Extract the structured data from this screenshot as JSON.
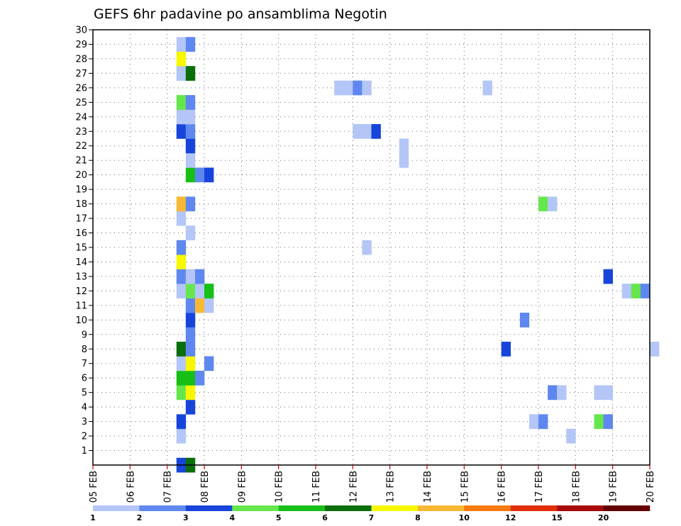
{
  "chart_data": {
    "type": "heatmap",
    "title": "GEFS 6hr padavine po ansamblima Negotin",
    "xlabel": "",
    "ylabel": "",
    "x_tick_labels": [
      "05 FEB",
      "06 FEB",
      "07 FEB",
      "08 FEB",
      "09 FEB",
      "10 FEB",
      "11 FEB",
      "12 FEB",
      "13 FEB",
      "14 FEB",
      "15 FEB",
      "16 FEB",
      "17 FEB",
      "18 FEB",
      "19 FEB",
      "20 FEB"
    ],
    "x_range_days": [
      0,
      15
    ],
    "y_tick_labels": [
      "1",
      "2",
      "3",
      "4",
      "5",
      "6",
      "7",
      "8",
      "9",
      "10",
      "11",
      "12",
      "13",
      "14",
      "15",
      "16",
      "17",
      "18",
      "19",
      "20",
      "21",
      "22",
      "23",
      "24",
      "25",
      "26",
      "27",
      "28",
      "29",
      "30"
    ],
    "y_range": [
      0,
      30
    ],
    "grid": true,
    "step_hours": 6,
    "colorbar": {
      "labels": [
        "1",
        "2",
        "3",
        "4",
        "5",
        "6",
        "7",
        "8",
        "10",
        "12",
        "15",
        "20"
      ],
      "colors": [
        "#b3c6f7",
        "#5f87f0",
        "#1745db",
        "#66e64d",
        "#16bf16",
        "#0a6e0a",
        "#f7f700",
        "#f7b933",
        "#f77a0a",
        "#e02e0a",
        "#a70b0b",
        "#640000"
      ],
      "placement": "bottom"
    },
    "cells": [
      {
        "m": 0,
        "s": 9,
        "c": 2
      },
      {
        "m": 0,
        "s": 10,
        "c": 5
      },
      {
        "m": 2,
        "s": 9,
        "c": 0
      },
      {
        "m": 3,
        "s": 9,
        "c": 2
      },
      {
        "m": 4,
        "s": 10,
        "c": 2
      },
      {
        "m": 5,
        "s": 9,
        "c": 3
      },
      {
        "m": 5,
        "s": 10,
        "c": 6
      },
      {
        "m": 6,
        "s": 9,
        "c": 4
      },
      {
        "m": 6,
        "s": 10,
        "c": 4
      },
      {
        "m": 6,
        "s": 11,
        "c": 1
      },
      {
        "m": 7,
        "s": 9,
        "c": 0
      },
      {
        "m": 7,
        "s": 10,
        "c": 6
      },
      {
        "m": 7,
        "s": 12,
        "c": 1
      },
      {
        "m": 8,
        "s": 9,
        "c": 5
      },
      {
        "m": 8,
        "s": 10,
        "c": 1
      },
      {
        "m": 9,
        "s": 10,
        "c": 1
      },
      {
        "m": 10,
        "s": 10,
        "c": 2
      },
      {
        "m": 11,
        "s": 10,
        "c": 1
      },
      {
        "m": 11,
        "s": 11,
        "c": 7
      },
      {
        "m": 11,
        "s": 12,
        "c": 0
      },
      {
        "m": 12,
        "s": 9,
        "c": 0
      },
      {
        "m": 12,
        "s": 10,
        "c": 3
      },
      {
        "m": 12,
        "s": 11,
        "c": 0
      },
      {
        "m": 12,
        "s": 12,
        "c": 4
      },
      {
        "m": 13,
        "s": 9,
        "c": 1
      },
      {
        "m": 13,
        "s": 10,
        "c": 0
      },
      {
        "m": 13,
        "s": 11,
        "c": 1
      },
      {
        "m": 14,
        "s": 9,
        "c": 6
      },
      {
        "m": 15,
        "s": 9,
        "c": 1
      },
      {
        "m": 16,
        "s": 10,
        "c": 0
      },
      {
        "m": 17,
        "s": 9,
        "c": 0
      },
      {
        "m": 18,
        "s": 9,
        "c": 7
      },
      {
        "m": 18,
        "s": 10,
        "c": 1
      },
      {
        "m": 20,
        "s": 10,
        "c": 4
      },
      {
        "m": 20,
        "s": 11,
        "c": 1
      },
      {
        "m": 20,
        "s": 12,
        "c": 2
      },
      {
        "m": 21,
        "s": 10,
        "c": 0
      },
      {
        "m": 22,
        "s": 10,
        "c": 2
      },
      {
        "m": 23,
        "s": 9,
        "c": 2
      },
      {
        "m": 23,
        "s": 10,
        "c": 1
      },
      {
        "m": 24,
        "s": 9,
        "c": 0
      },
      {
        "m": 24,
        "s": 10,
        "c": 0
      },
      {
        "m": 25,
        "s": 9,
        "c": 3
      },
      {
        "m": 25,
        "s": 10,
        "c": 1
      },
      {
        "m": 27,
        "s": 9,
        "c": 0
      },
      {
        "m": 27,
        "s": 10,
        "c": 5
      },
      {
        "m": 28,
        "s": 9,
        "c": 6
      },
      {
        "m": 29,
        "s": 9,
        "c": 0
      },
      {
        "m": 29,
        "s": 10,
        "c": 1
      },
      {
        "m": 26,
        "s": 26,
        "c": 0
      },
      {
        "m": 26,
        "s": 27,
        "c": 0
      },
      {
        "m": 26,
        "s": 28,
        "c": 1
      },
      {
        "m": 26,
        "s": 29,
        "c": 0
      },
      {
        "m": 23,
        "s": 28,
        "c": 0
      },
      {
        "m": 23,
        "s": 29,
        "c": 0
      },
      {
        "m": 23,
        "s": 30,
        "c": 2
      },
      {
        "m": 21,
        "s": 33,
        "c": 0
      },
      {
        "m": 22,
        "s": 33,
        "c": 0
      },
      {
        "m": 15,
        "s": 29,
        "c": 0
      },
      {
        "m": 26,
        "s": 42,
        "c": 0
      },
      {
        "m": 10,
        "s": 46,
        "c": 1
      },
      {
        "m": 8,
        "s": 44,
        "c": 2
      },
      {
        "m": 18,
        "s": 48,
        "c": 3
      },
      {
        "m": 18,
        "s": 49,
        "c": 0
      },
      {
        "m": 5,
        "s": 49,
        "c": 1
      },
      {
        "m": 5,
        "s": 50,
        "c": 0
      },
      {
        "m": 3,
        "s": 47,
        "c": 0
      },
      {
        "m": 3,
        "s": 48,
        "c": 1
      },
      {
        "m": 2,
        "s": 51,
        "c": 0
      },
      {
        "m": 5,
        "s": 54,
        "c": 0
      },
      {
        "m": 5,
        "s": 55,
        "c": 0
      },
      {
        "m": 3,
        "s": 54,
        "c": 3
      },
      {
        "m": 3,
        "s": 55,
        "c": 1
      },
      {
        "m": 13,
        "s": 55,
        "c": 2
      },
      {
        "m": 12,
        "s": 57,
        "c": 0
      },
      {
        "m": 12,
        "s": 58,
        "c": 3
      },
      {
        "m": 12,
        "s": 59,
        "c": 1
      },
      {
        "m": 8,
        "s": 60,
        "c": 0
      }
    ]
  }
}
